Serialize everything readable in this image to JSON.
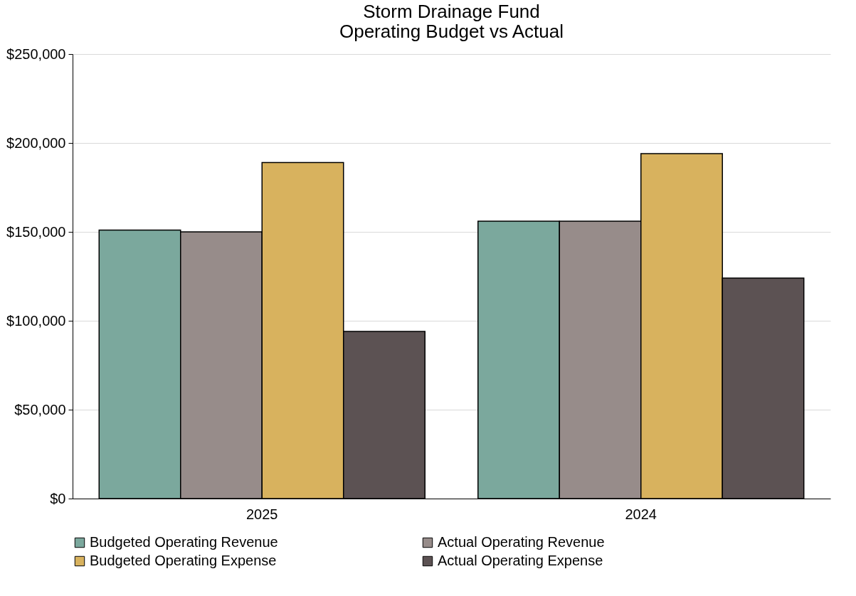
{
  "chart_data": {
    "type": "bar",
    "title": "Storm Drainage Fund",
    "subtitle": "Operating Budget vs Actual",
    "categories": [
      "2025",
      "2024"
    ],
    "series": [
      {
        "name": "Budgeted Operating Revenue",
        "color": "#7ba89d",
        "values": [
          151000,
          156000
        ]
      },
      {
        "name": "Actual Operating Revenue",
        "color": "#978c8a",
        "values": [
          150000,
          156000
        ]
      },
      {
        "name": "Budgeted Operating Expense",
        "color": "#d8b25e",
        "values": [
          189000,
          194000
        ]
      },
      {
        "name": "Actual Operating Expense",
        "color": "#5c5253",
        "values": [
          94000,
          124000
        ]
      }
    ],
    "ylim": [
      0,
      250000
    ],
    "yticks": [
      {
        "value": 0,
        "label": "$0"
      },
      {
        "value": 50000,
        "label": "$50,000"
      },
      {
        "value": 100000,
        "label": "$100,000"
      },
      {
        "value": 150000,
        "label": "$150,000"
      },
      {
        "value": 200000,
        "label": "$200,000"
      },
      {
        "value": 250000,
        "label": "$250,000"
      }
    ],
    "grid": "y",
    "legend": "bottom"
  }
}
